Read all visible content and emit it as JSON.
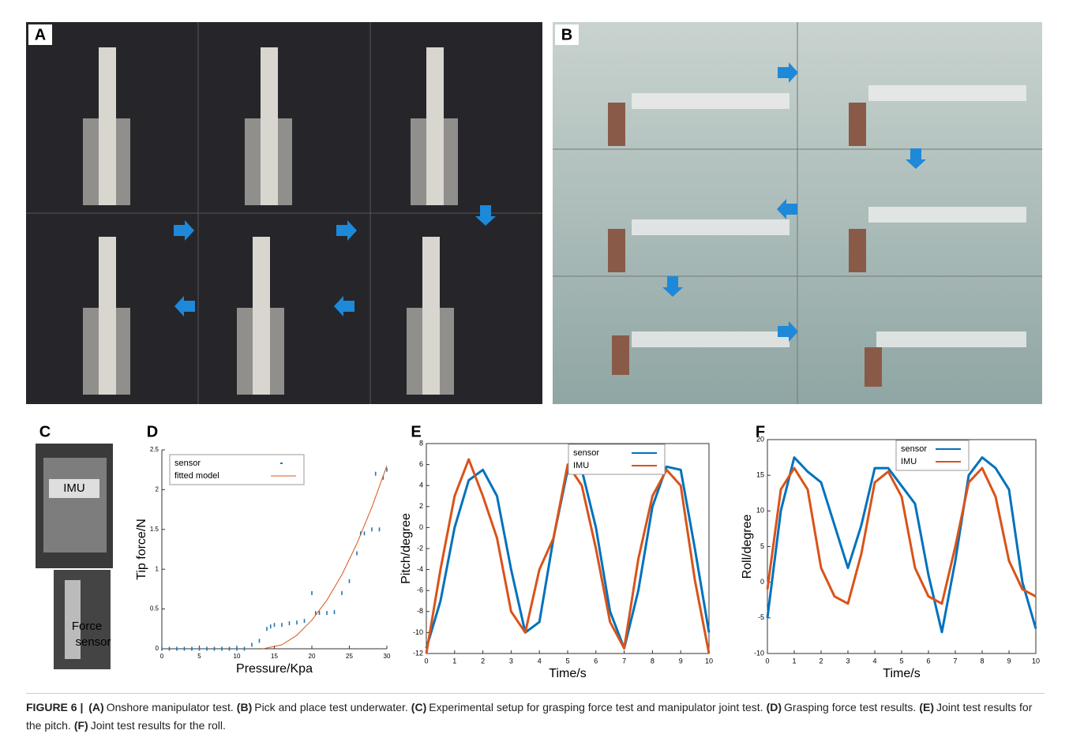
{
  "panel_labels": [
    "A",
    "B",
    "C",
    "D",
    "E",
    "F"
  ],
  "photo_labels": {
    "imu": "IMU",
    "force_sensor": [
      "Force",
      "sensor"
    ]
  },
  "chart_data": [
    {
      "type": "scatter",
      "xlabel": "Pressure/Kpa",
      "ylabel": "Tip force/N",
      "xlim": [
        0,
        30
      ],
      "xticks": [
        0,
        5,
        10,
        15,
        20,
        25,
        30
      ],
      "ylim": [
        0,
        2.5
      ],
      "yticks": [
        0,
        0.5,
        1,
        1.5,
        2,
        2.5
      ],
      "legend": "upper left",
      "box": false,
      "series": [
        {
          "name": "sensor",
          "color": "#1f77b4",
          "kind": "scatter",
          "x": [
            0,
            1,
            2,
            3,
            4,
            5,
            6,
            7,
            8,
            9,
            10,
            11,
            12,
            13,
            14,
            14.5,
            15,
            16,
            17,
            18,
            19,
            20,
            20.5,
            21,
            22,
            23,
            24,
            25,
            26,
            26.5,
            27,
            28,
            28.5,
            29,
            29.5,
            30
          ],
          "values": [
            0,
            0,
            0,
            0,
            0,
            0,
            0,
            0,
            0,
            0,
            0,
            0,
            0.05,
            0.1,
            0.25,
            0.28,
            0.3,
            0.3,
            0.32,
            0.33,
            0.35,
            0.7,
            0.45,
            0.45,
            0.45,
            0.46,
            0.7,
            0.85,
            1.2,
            1.45,
            1.45,
            1.5,
            2.2,
            1.5,
            2.15,
            2.25
          ]
        },
        {
          "name": "fitted model",
          "color": "#d95319",
          "kind": "line",
          "x": [
            13.5,
            16,
            18,
            20,
            22,
            24,
            26,
            28,
            30
          ],
          "values": [
            0,
            0.05,
            0.17,
            0.36,
            0.61,
            0.93,
            1.32,
            1.78,
            2.3
          ]
        }
      ]
    },
    {
      "type": "line",
      "xlabel": "Time/s",
      "ylabel": "Pitch/degree",
      "xlim": [
        0,
        10
      ],
      "xticks": [
        0,
        1,
        2,
        3,
        4,
        5,
        6,
        7,
        8,
        9,
        10
      ],
      "ylim": [
        -12,
        8
      ],
      "yticks": [
        -12,
        -10,
        -8,
        -6,
        -4,
        -2,
        0,
        2,
        4,
        6,
        8
      ],
      "legend": "upper center",
      "box": true,
      "x": [
        0,
        0.5,
        1,
        1.5,
        2,
        2.5,
        3,
        3.5,
        4,
        4.5,
        5,
        5.5,
        6,
        6.5,
        7,
        7.5,
        8,
        8.5,
        9,
        9.5,
        10
      ],
      "series": [
        {
          "name": "sensor",
          "color": "#0072bd",
          "values": [
            -11.5,
            -7,
            0,
            4.5,
            5.5,
            3,
            -4,
            -10,
            -9,
            -1,
            5.5,
            5.5,
            0,
            -8,
            -11.5,
            -6,
            2,
            5.8,
            5.5,
            -2,
            -10
          ]
        },
        {
          "name": "IMU",
          "color": "#d95319",
          "values": [
            -12,
            -4,
            3,
            6.5,
            3,
            -1,
            -8,
            -10,
            -4,
            -1,
            6,
            4,
            -2,
            -9,
            -11.5,
            -3,
            3,
            5.5,
            4,
            -5,
            -12
          ]
        }
      ]
    },
    {
      "type": "line",
      "xlabel": "Time/s",
      "ylabel": "Roll/degree",
      "xlim": [
        0,
        10
      ],
      "xticks": [
        0,
        1,
        2,
        3,
        4,
        5,
        6,
        7,
        8,
        9,
        10
      ],
      "ylim": [
        -10,
        20
      ],
      "yticks": [
        -10,
        -5,
        0,
        5,
        10,
        15,
        20
      ],
      "legend": "upper center",
      "box": true,
      "x": [
        0,
        0.5,
        1,
        1.5,
        2,
        2.5,
        3,
        3.5,
        4,
        4.5,
        5,
        5.5,
        6,
        6.5,
        7,
        7.5,
        8,
        8.5,
        9,
        9.5,
        10
      ],
      "series": [
        {
          "name": "sensor",
          "color": "#0072bd",
          "values": [
            -5,
            10,
            17.5,
            15.5,
            14,
            8,
            2,
            8,
            16,
            16,
            13.5,
            11,
            1,
            -7,
            3,
            15,
            17.5,
            16,
            13,
            0,
            -6.5
          ]
        },
        {
          "name": "IMU",
          "color": "#d95319",
          "values": [
            -1,
            13,
            16,
            13,
            2,
            -2,
            -3,
            4,
            14,
            15.5,
            12,
            2,
            -2,
            -3,
            5,
            14,
            16,
            12,
            3,
            -1,
            -2
          ]
        }
      ]
    }
  ],
  "caption": {
    "figure": "FIGURE 6 |",
    "items": [
      {
        "label": "(A)",
        "text": "Onshore manipulator test."
      },
      {
        "label": "(B)",
        "text": "Pick and place test underwater."
      },
      {
        "label": "(C)",
        "text": "Experimental setup for grasping force test and manipulator joint test."
      },
      {
        "label": "(D)",
        "text": "Grasping force test results."
      },
      {
        "label": "(E)",
        "text": "Joint test results for the pitch."
      },
      {
        "label": "(F)",
        "text": "Joint test results for the roll."
      }
    ]
  }
}
